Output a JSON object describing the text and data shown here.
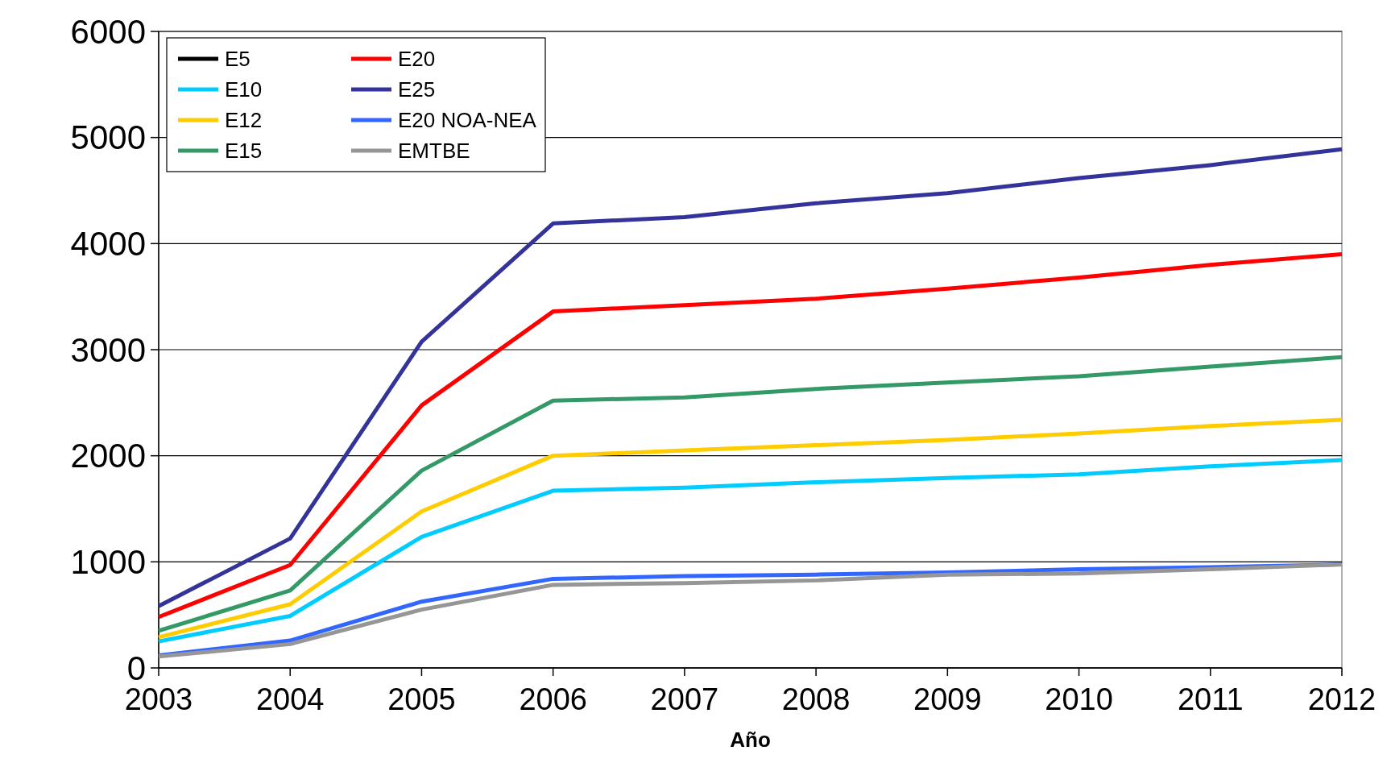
{
  "chart_data": {
    "type": "line",
    "xlabel": "Año",
    "x": [
      2003,
      2004,
      2005,
      2006,
      2007,
      2008,
      2009,
      2010,
      2011,
      2012
    ],
    "xlim": [
      2003,
      2012
    ],
    "xticks": [
      2003,
      2004,
      2005,
      2006,
      2007,
      2008,
      2009,
      2010,
      2011,
      2012
    ],
    "ylim": [
      0,
      6000
    ],
    "yticks": [
      0,
      1000,
      2000,
      3000,
      4000,
      5000,
      6000
    ],
    "grid": "y",
    "legend": "top left",
    "marker": "none",
    "line_style": "solid",
    "series": [
      {
        "name": "E5",
        "color": "#000000",
        "values": [
          null,
          null,
          null,
          null,
          null,
          null,
          null,
          null,
          null,
          null
        ]
      },
      {
        "name": "E10",
        "color": "#00ccff",
        "values": [
          250,
          490,
          1235,
          1670,
          1700,
          1750,
          1790,
          1825,
          1900,
          1960
        ]
      },
      {
        "name": "E12",
        "color": "#ffcc00",
        "values": [
          290,
          600,
          1475,
          2000,
          2050,
          2100,
          2150,
          2210,
          2280,
          2340
        ]
      },
      {
        "name": "E15",
        "color": "#339966",
        "values": [
          350,
          730,
          1860,
          2520,
          2550,
          2630,
          2690,
          2750,
          2840,
          2930
        ]
      },
      {
        "name": "E20",
        "color": "#ff0000",
        "values": [
          480,
          970,
          2475,
          3360,
          3420,
          3480,
          3575,
          3680,
          3800,
          3900
        ]
      },
      {
        "name": "E25",
        "color": "#333399",
        "values": [
          583,
          1220,
          3075,
          4190,
          4250,
          4380,
          4475,
          4617,
          4740,
          4890
        ]
      },
      {
        "name": "E20 NOA-NEA",
        "color": "#3366ff",
        "values": [
          117,
          258,
          625,
          840,
          865,
          880,
          900,
          930,
          950,
          975
        ]
      },
      {
        "name": "EMTBE",
        "color": "#969696",
        "values": [
          108,
          225,
          550,
          783,
          800,
          825,
          880,
          890,
          930,
          975
        ]
      }
    ]
  }
}
